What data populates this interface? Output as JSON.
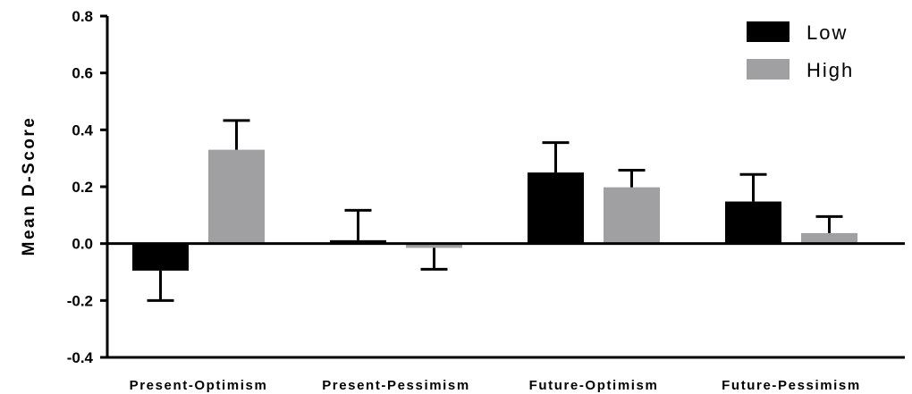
{
  "chart_data": {
    "type": "bar",
    "title": "",
    "xlabel": "",
    "ylabel": "Mean D-Score",
    "ylim": [
      -0.4,
      0.8
    ],
    "yticks": [
      -0.4,
      -0.2,
      0.0,
      0.2,
      0.4,
      0.6,
      0.8
    ],
    "ytick_labels": [
      "-0.4",
      "-0.2",
      "0.0",
      "0.2",
      "0.4",
      "0.6",
      "0.8"
    ],
    "categories": [
      "Present-Optimism",
      "Present-Pessimism",
      "Future-Optimism",
      "Future-Pessimism"
    ],
    "series": [
      {
        "name": "Low",
        "color": "#000000",
        "values": [
          -0.095,
          0.012,
          0.25,
          0.148
        ],
        "error": [
          0.105,
          0.105,
          0.105,
          0.095
        ]
      },
      {
        "name": "High",
        "color": "#a0a0a2",
        "values": [
          0.33,
          -0.015,
          0.198,
          0.037
        ],
        "error": [
          0.103,
          0.075,
          0.06,
          0.058
        ]
      }
    ],
    "grid": false,
    "legend_position": "top-right"
  }
}
